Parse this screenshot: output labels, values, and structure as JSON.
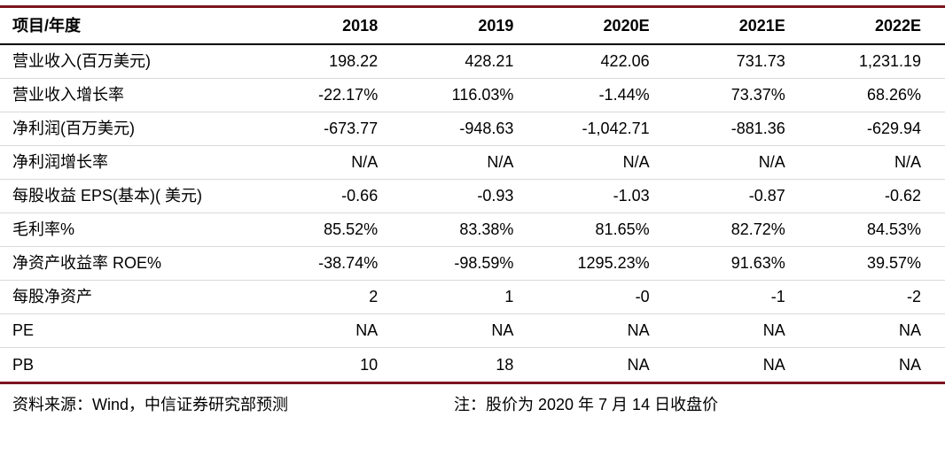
{
  "colors": {
    "accent_line": "#7b141e",
    "header_line": "#000000",
    "row_line": "#d9d9d9"
  },
  "table": {
    "columns": [
      "项目/年度",
      "2018",
      "2019",
      "2020E",
      "2021E",
      "2022E"
    ],
    "rows": [
      {
        "label": "营业收入(百万美元)",
        "values": [
          "198.22",
          "428.21",
          "422.06",
          "731.73",
          "1,231.19"
        ]
      },
      {
        "label": "营业收入增长率",
        "values": [
          "-22.17%",
          "116.03%",
          "-1.44%",
          "73.37%",
          "68.26%"
        ]
      },
      {
        "label": "净利润(百万美元)",
        "values": [
          "-673.77",
          "-948.63",
          "-1,042.71",
          "-881.36",
          "-629.94"
        ]
      },
      {
        "label": "净利润增长率",
        "values": [
          "N/A",
          "N/A",
          "N/A",
          "N/A",
          "N/A"
        ]
      },
      {
        "label": "每股收益 EPS(基本)( 美元)",
        "values": [
          "-0.66",
          "-0.93",
          "-1.03",
          "-0.87",
          "-0.62"
        ]
      },
      {
        "label": "毛利率%",
        "values": [
          "85.52%",
          "83.38%",
          "81.65%",
          "82.72%",
          "84.53%"
        ]
      },
      {
        "label": "净资产收益率 ROE%",
        "values": [
          "-38.74%",
          "-98.59%",
          "1295.23%",
          "91.63%",
          "39.57%"
        ]
      },
      {
        "label": "每股净资产",
        "values": [
          "2",
          "1",
          "-0",
          "-1",
          "-2"
        ]
      },
      {
        "label": "PE",
        "values": [
          "NA",
          "NA",
          "NA",
          "NA",
          "NA"
        ]
      },
      {
        "label": "PB",
        "values": [
          "10",
          "18",
          "NA",
          "NA",
          "NA"
        ]
      }
    ],
    "footer": {
      "source": "资料来源：Wind，中信证券研究部预测",
      "note": "注：股价为 2020 年 7 月 14 日收盘价"
    }
  }
}
